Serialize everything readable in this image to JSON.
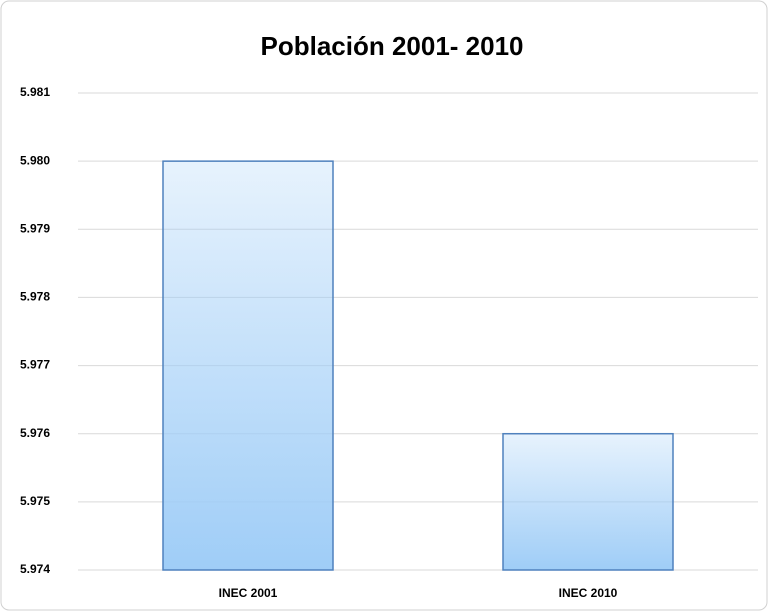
{
  "chart_data": {
    "type": "bar",
    "title": "Población 2001- 2010",
    "categories": [
      "INEC 2001",
      "INEC 2010"
    ],
    "values": [
      5.98,
      5.976
    ],
    "color": "#9fcdf7",
    "ylim": [
      5.974,
      5.981
    ],
    "yticks": [
      5.974,
      5.975,
      5.976,
      5.977,
      5.978,
      5.979,
      {
        "value": 5.98,
        "label": "5.980"
      },
      5.981
    ],
    "grid": true
  }
}
